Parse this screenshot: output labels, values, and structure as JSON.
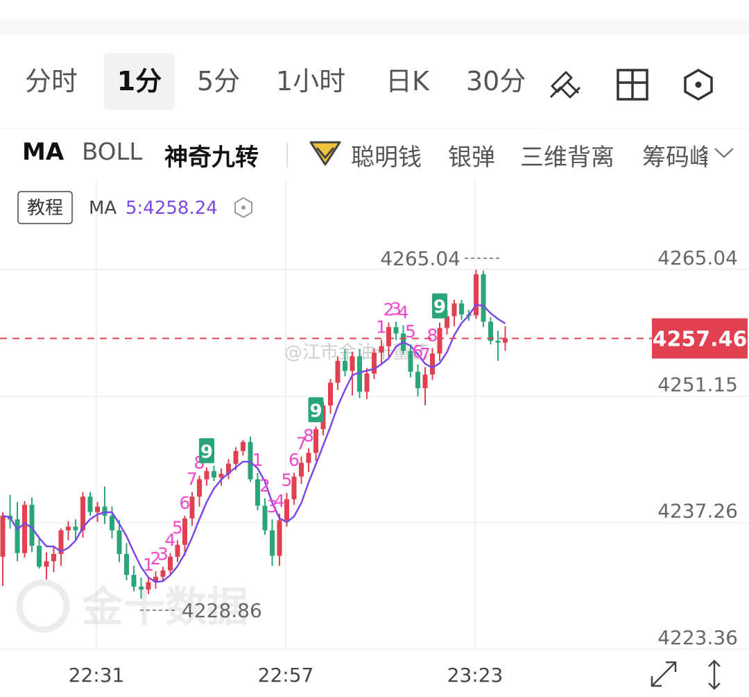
{
  "timeframe_tabs": [
    "分时",
    "1分",
    "5分",
    "1小时",
    "日K",
    "30分"
  ],
  "active_tab": "1分",
  "toolbar_icons": [
    "draw-tool-icon",
    "layout-grid-icon",
    "settings-hexagon-icon"
  ],
  "indicator_tabs": [
    "MA",
    "BOLL",
    "神奇九转",
    "聪明钱",
    "银弹",
    "三维背离",
    "筹码峰"
  ],
  "legend": {
    "tutorial": "教程",
    "ma_label": "MA",
    "ma_value": "5:4258.24"
  },
  "price_labels": {
    "high_marker": "4265.04",
    "low_marker": "4228.86",
    "current": "4257.46"
  },
  "watermark_text": "@江市金油十董艺",
  "logo_text": "金十数据",
  "colors": {
    "up": "#e0404f",
    "down": "#2aa577",
    "ma": "#7a48e6",
    "nine": "#f048c8",
    "current_bg": "#e0404f"
  },
  "chart_data": {
    "type": "candlestick",
    "y_ticks": [
      "4265.04",
      "4251.15",
      "4237.26",
      "4223.36"
    ],
    "ylim": [
      4223.36,
      4265.04
    ],
    "x_ticks": [
      "22:31",
      "22:57",
      "23:23"
    ],
    "current_price": 4257.46,
    "ma_period": 5,
    "series": [
      {
        "values": [
          [
            4233.5,
            4238.4,
            4230.3,
            4238.0
          ],
          [
            4238.0,
            4240.3,
            4236.6,
            4237.6
          ],
          [
            4237.6,
            4239.5,
            4233.0,
            4233.9
          ],
          [
            4233.9,
            4239.6,
            4233.4,
            4239.2
          ],
          [
            4239.2,
            4240.0,
            4234.0,
            4234.7
          ],
          [
            4234.7,
            4235.5,
            4232.2,
            4232.4
          ],
          [
            4232.4,
            4234.0,
            4231.0,
            4233.0
          ],
          [
            4233.0,
            4234.6,
            4231.8,
            4233.8
          ],
          [
            4233.8,
            4236.6,
            4232.5,
            4236.4
          ],
          [
            4236.4,
            4237.4,
            4235.3,
            4236.8
          ],
          [
            4236.8,
            4237.6,
            4235.4,
            4236.4
          ],
          [
            4236.4,
            4240.6,
            4235.6,
            4240.1
          ],
          [
            4240.1,
            4240.6,
            4238.0,
            4238.4
          ],
          [
            4238.4,
            4239.5,
            4237.3,
            4239.0
          ],
          [
            4239.0,
            4241.2,
            4237.1,
            4238.0
          ],
          [
            4238.0,
            4239.0,
            4235.5,
            4236.4
          ],
          [
            4236.4,
            4237.5,
            4232.9,
            4233.8
          ],
          [
            4233.8,
            4235.0,
            4230.9,
            4231.5
          ],
          [
            4231.5,
            4232.5,
            4229.7,
            4230.2
          ],
          [
            4230.2,
            4231.2,
            4228.9,
            4229.9
          ],
          [
            4229.9,
            4231.2,
            4229.4,
            4230.7
          ],
          [
            4230.7,
            4231.9,
            4230.0,
            4231.3
          ],
          [
            4231.3,
            4232.4,
            4230.8,
            4232.0
          ],
          [
            4232.0,
            4233.9,
            4231.6,
            4233.5
          ],
          [
            4233.5,
            4235.3,
            4232.9,
            4234.8
          ],
          [
            4234.8,
            4238.0,
            4233.6,
            4237.7
          ],
          [
            4237.7,
            4240.6,
            4236.9,
            4240.1
          ],
          [
            4240.1,
            4242.4,
            4239.0,
            4242.0
          ],
          [
            4242.0,
            4243.3,
            4241.3,
            4242.9
          ],
          [
            4242.9,
            4243.5,
            4241.8,
            4242.2
          ],
          [
            4242.2,
            4243.2,
            4241.3,
            4242.6
          ],
          [
            4242.6,
            4244.2,
            4242.0,
            4243.7
          ],
          [
            4243.7,
            4245.5,
            4243.0,
            4245.1
          ],
          [
            4245.1,
            4246.3,
            4244.6,
            4246.1
          ],
          [
            4246.1,
            4246.7,
            4241.7,
            4242.0
          ],
          [
            4242.0,
            4242.7,
            4238.6,
            4239.1
          ],
          [
            4239.1,
            4239.9,
            4235.9,
            4236.4
          ],
          [
            4236.4,
            4237.6,
            4232.5,
            4233.6
          ],
          [
            4233.6,
            4238.2,
            4232.5,
            4237.5
          ],
          [
            4237.5,
            4240.5,
            4236.8,
            4239.8
          ],
          [
            4239.8,
            4242.7,
            4239.2,
            4242.3
          ],
          [
            4242.3,
            4244.5,
            4241.5,
            4243.8
          ],
          [
            4243.8,
            4245.4,
            4242.8,
            4244.9
          ],
          [
            4244.9,
            4247.8,
            4244.0,
            4247.5
          ],
          [
            4247.5,
            4250.5,
            4246.8,
            4250.1
          ],
          [
            4250.1,
            4253.0,
            4249.2,
            4252.6
          ],
          [
            4252.6,
            4255.5,
            4251.8,
            4255.0
          ],
          [
            4255.0,
            4256.3,
            4253.3,
            4253.9
          ],
          [
            4253.9,
            4256.0,
            4251.2,
            4255.5
          ],
          [
            4255.5,
            4256.3,
            4250.9,
            4251.6
          ],
          [
            4251.6,
            4254.2,
            4250.8,
            4253.6
          ],
          [
            4253.6,
            4256.4,
            4253.0,
            4255.9
          ],
          [
            4255.9,
            4257.3,
            4254.7,
            4256.6
          ],
          [
            4256.6,
            4259.2,
            4255.4,
            4258.7
          ],
          [
            4258.7,
            4259.3,
            4257.3,
            4258.0
          ],
          [
            4258.0,
            4258.9,
            4255.7,
            4256.1
          ],
          [
            4256.1,
            4256.8,
            4253.2,
            4253.8
          ],
          [
            4253.8,
            4254.6,
            4251.1,
            4252.0
          ],
          [
            4252.0,
            4254.3,
            4250.1,
            4253.5
          ],
          [
            4253.5,
            4256.4,
            4252.9,
            4255.8
          ],
          [
            4255.8,
            4259.2,
            4255.0,
            4258.6
          ],
          [
            4258.6,
            4260.5,
            4257.9,
            4259.9
          ],
          [
            4259.9,
            4261.7,
            4258.8,
            4261.3
          ],
          [
            4261.3,
            4261.7,
            4259.5,
            4260.1
          ],
          [
            4260.1,
            4260.6,
            4259.4,
            4260.0
          ],
          [
            4260.0,
            4265.0,
            4259.6,
            4264.5
          ],
          [
            4264.5,
            4264.9,
            4258.7,
            4259.3
          ],
          [
            4259.3,
            4259.8,
            4256.8,
            4257.2
          ],
          [
            4257.2,
            4258.3,
            4255.0,
            4257.0
          ],
          [
            4257.0,
            4258.8,
            4256.1,
            4257.46
          ]
        ]
      }
    ],
    "td_counts": [
      {
        "label": "1",
        "candle": 20
      },
      {
        "label": "2",
        "candle": 21
      },
      {
        "label": "3",
        "candle": 22
      },
      {
        "label": "4",
        "candle": 23
      },
      {
        "label": "5",
        "candle": 24
      },
      {
        "label": "6",
        "candle": 25
      },
      {
        "label": "7",
        "candle": 26
      },
      {
        "label": "8",
        "candle": 27
      },
      {
        "label": "9",
        "candle": 28,
        "boxed": true
      },
      {
        "label": "1",
        "candle": 35
      },
      {
        "label": "2",
        "candle": 36
      },
      {
        "label": "3",
        "candle": 37
      },
      {
        "label": "4",
        "candle": 38
      },
      {
        "label": "5",
        "candle": 39
      },
      {
        "label": "6",
        "candle": 40
      },
      {
        "label": "7",
        "candle": 41
      },
      {
        "label": "8",
        "candle": 42
      },
      {
        "label": "9",
        "candle": 43,
        "boxed": true
      },
      {
        "label": "1",
        "candle": 52
      },
      {
        "label": "2",
        "candle": 53
      },
      {
        "label": "3",
        "candle": 54
      },
      {
        "label": "4",
        "candle": 55
      },
      {
        "label": "5",
        "candle": 56
      },
      {
        "label": "6",
        "candle": 57
      },
      {
        "label": "7",
        "candle": 58
      },
      {
        "label": "8",
        "candle": 59
      },
      {
        "label": "9",
        "candle": 60,
        "boxed": true
      }
    ]
  }
}
